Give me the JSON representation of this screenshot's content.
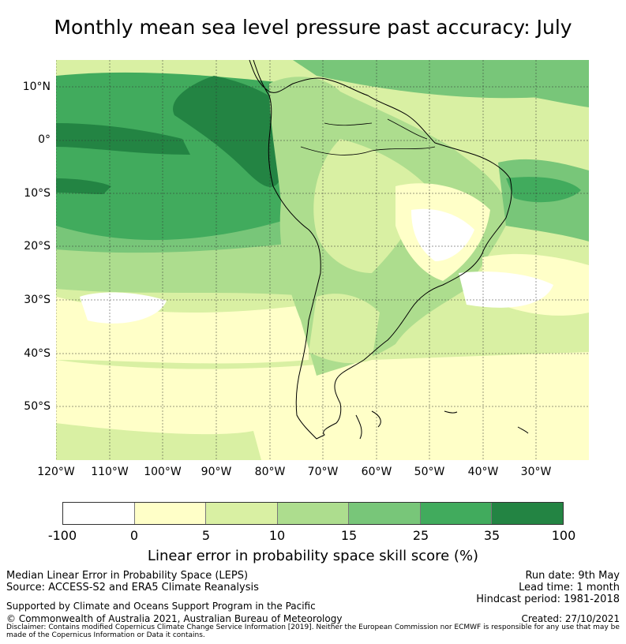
{
  "title": "Monthly mean sea level pressure past accuracy: July",
  "map": {
    "lat_labels": [
      "10°N",
      "0°",
      "10°S",
      "20°S",
      "30°S",
      "40°S",
      "50°S"
    ],
    "lon_labels": [
      "120°W",
      "110°W",
      "100°W",
      "90°W",
      "80°W",
      "70°W",
      "60°W",
      "50°W",
      "40°W",
      "30°W"
    ]
  },
  "colorbar": {
    "ticks": [
      "-100",
      "0",
      "5",
      "10",
      "15",
      "25",
      "35",
      "100"
    ],
    "colors": [
      "#ffffff",
      "#ffffc8",
      "#d9f0a3",
      "#addd8e",
      "#78c679",
      "#41ab5d",
      "#238443"
    ],
    "label": "Linear error in probability space skill score (%)"
  },
  "footer": {
    "left_lines": [
      "Median Linear Error in Probability Space (LEPS)",
      "Source: ACCESS-S2 and ERA5 Climate Reanalysis"
    ],
    "right_lines": [
      "Run date: 9th May",
      "Lead time: 1 month",
      "Hindcast period: 1981-2018"
    ],
    "supported": "Supported by Climate and Oceans Support Program in the Pacific",
    "copyright": "© Commonwealth of Australia 2021, Australian Bureau of Meteorology",
    "created": "Created: 27/10/2021",
    "disclaimer": "Disclaimer: Contains modified Copernicus Climate Change Service Information [2019]. Neither the European Commission nor ECMWF is responsible for any use that may be made of the Copernicus Information or Data it contains."
  }
}
